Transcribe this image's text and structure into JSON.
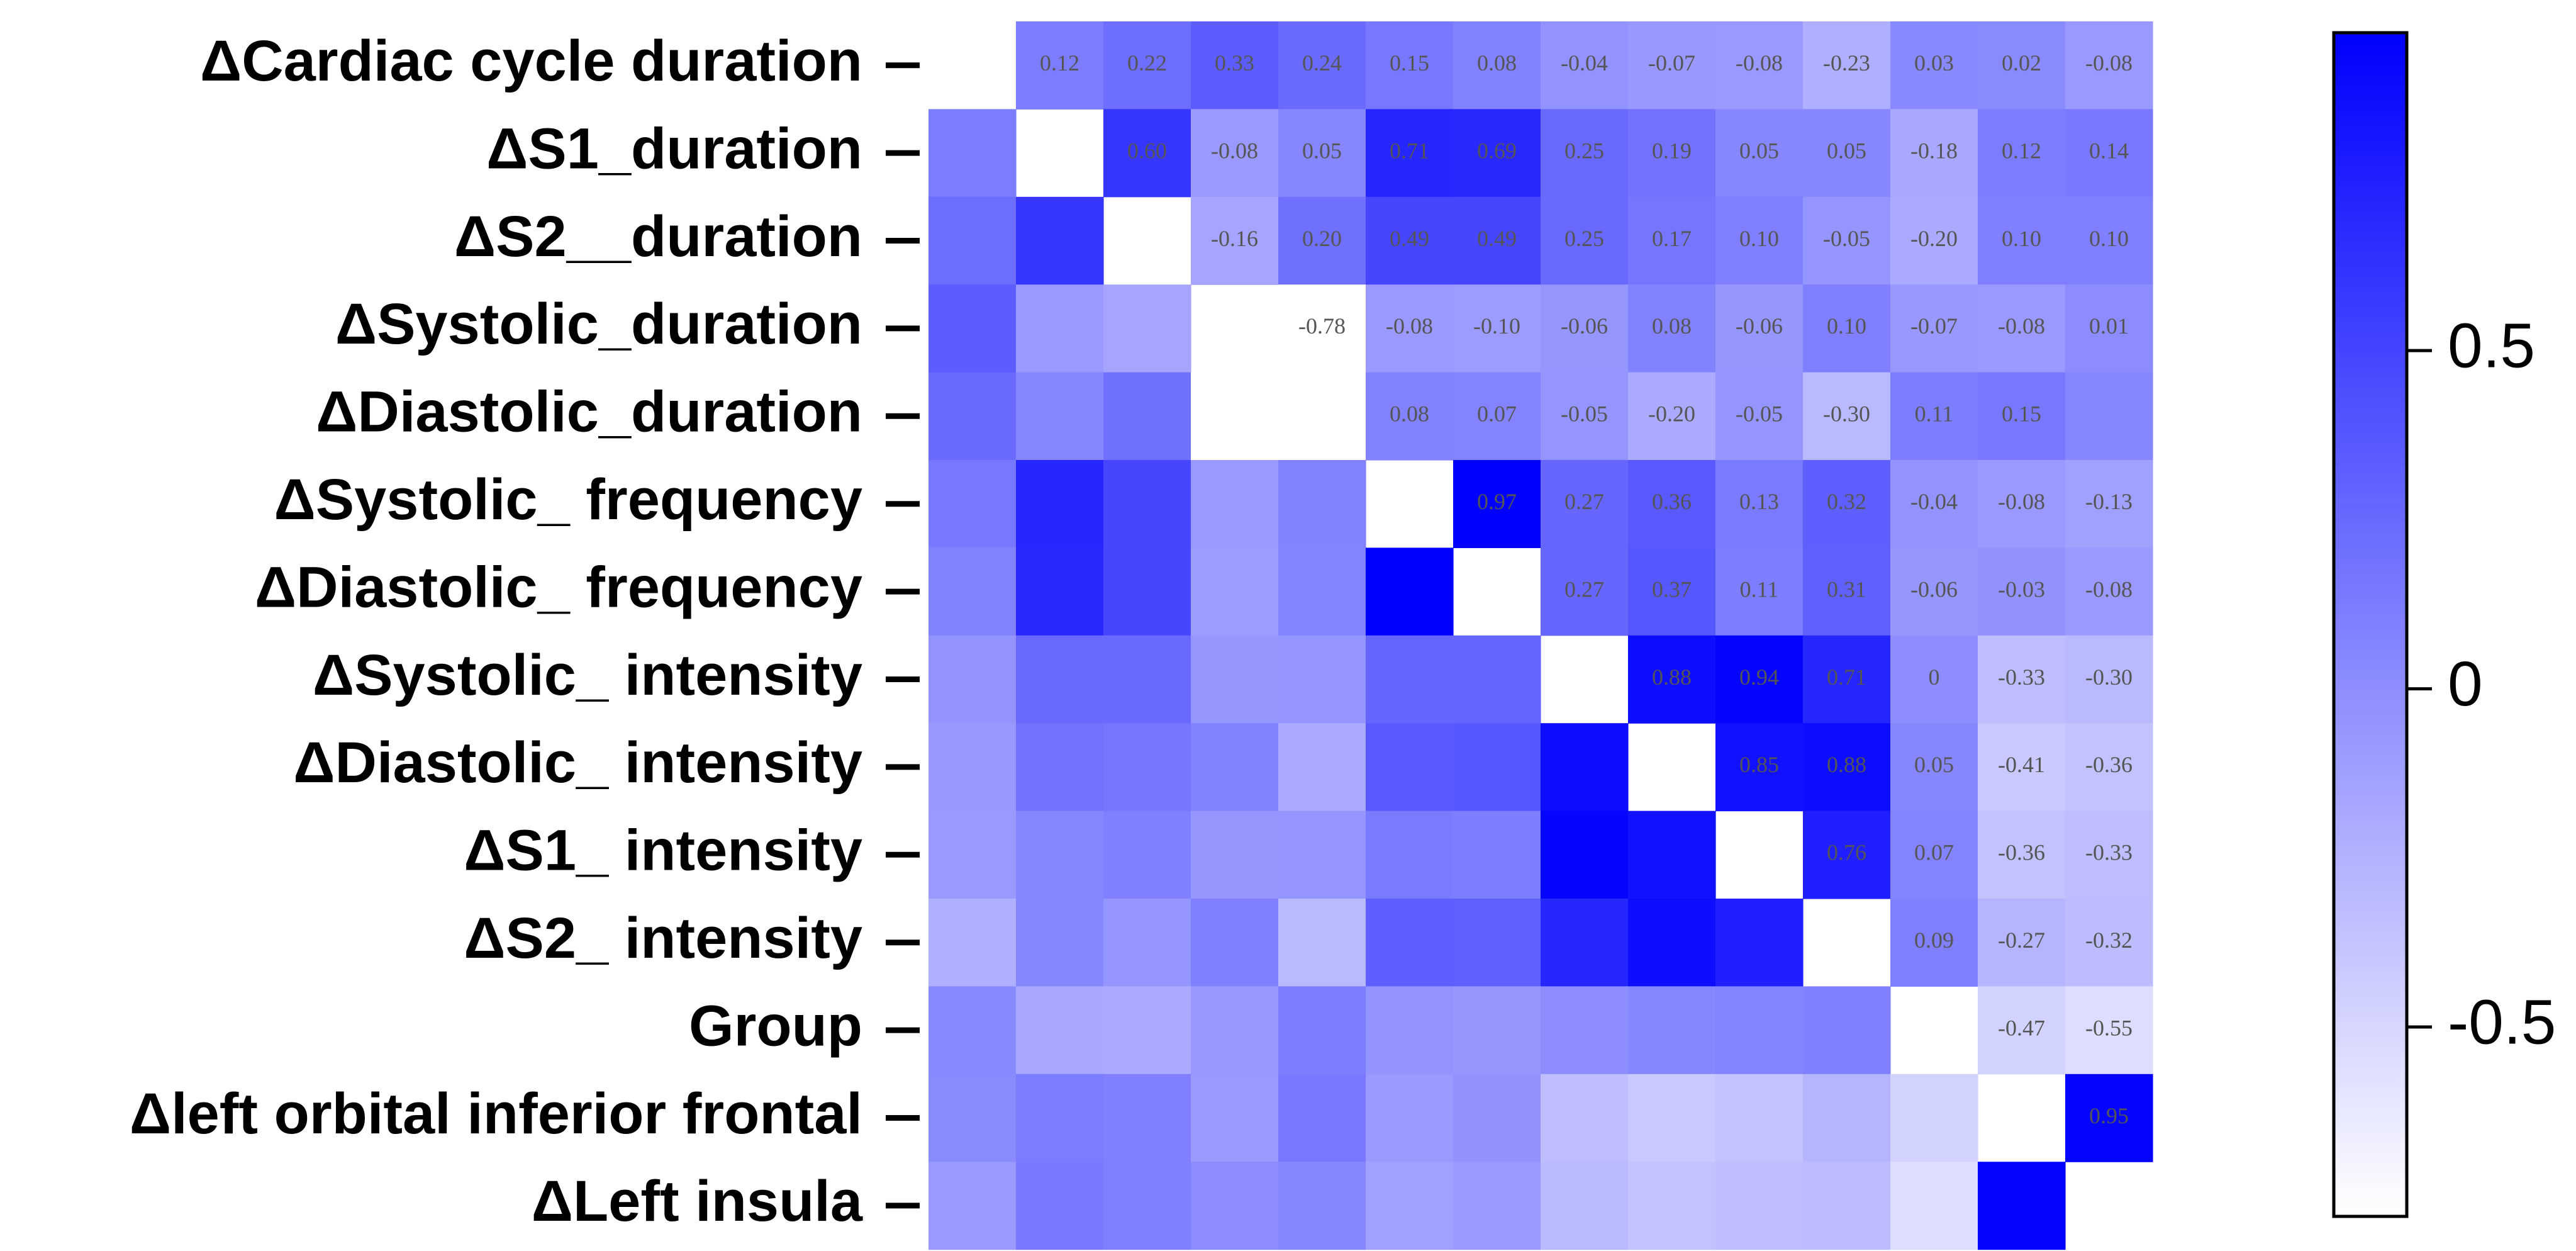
{
  "chart_data": {
    "type": "heatmap",
    "row_labels": [
      "ΔCardiac cycle duration",
      "ΔS1_duration",
      "ΔS2__duration",
      "ΔSystolic_duration",
      "ΔDiastolic_duration",
      "ΔSystolic_ frequency",
      "ΔDiastolic_ frequency",
      "ΔSystolic_ intensity",
      "ΔDiastolic_ intensity",
      "ΔS1_ intensity",
      "ΔS2_ intensity",
      "Group",
      "Δleft orbital inferior frontal",
      "ΔLeft insula"
    ],
    "values": [
      [
        0.12,
        0.22,
        0.33,
        0.24,
        0.15,
        0.08,
        -0.04,
        -0.07,
        -0.08,
        -0.23,
        0.03,
        0.02,
        -0.08
      ],
      [
        0.6,
        -0.08,
        0.05,
        0.71,
        0.69,
        0.25,
        0.19,
        0.05,
        0.05,
        -0.18,
        0.12,
        0.14
      ],
      [
        -0.16,
        0.2,
        0.49,
        0.49,
        0.25,
        0.17,
        0.1,
        -0.05,
        -0.2,
        0.1,
        0.1
      ],
      [
        -0.78,
        -0.08,
        -0.1,
        -0.06,
        0.08,
        -0.06,
        0.1,
        -0.07,
        -0.08,
        0.01
      ],
      [
        0.08,
        0.07,
        -0.05,
        -0.2,
        -0.05,
        -0.3,
        0.11,
        0.15,
        0.05
      ],
      [
        0.97,
        0.27,
        0.36,
        0.13,
        0.32,
        -0.04,
        -0.08,
        -0.13
      ],
      [
        0.27,
        0.37,
        0.11,
        0.31,
        -0.06,
        -0.03,
        -0.08
      ],
      [
        0.88,
        0.94,
        0.71,
        0,
        -0.33,
        -0.3
      ],
      [
        0.85,
        0.88,
        0.05,
        -0.41,
        -0.36
      ],
      [
        0.76,
        0.07,
        -0.36,
        -0.33
      ],
      [
        0.09,
        -0.27,
        -0.32
      ],
      [
        -0.47,
        -0.55
      ],
      [
        0.95
      ],
      []
    ],
    "value_labels": [
      [
        "0.12",
        "0.22",
        "0.33",
        "0.24",
        "0.15",
        "0.08",
        "-0.04",
        "-0.07",
        "-0.08",
        "-0.23",
        "0.03",
        "0.02",
        "-0.08"
      ],
      [
        "0.60",
        "-0.08",
        "0.05",
        "0.71",
        "0.69",
        "0.25",
        "0.19",
        "0.05",
        "0.05",
        "-0.18",
        "0.12",
        "0.14"
      ],
      [
        "-0.16",
        "0.20",
        "0.49",
        "0.49",
        "0.25",
        "0.17",
        "0.10",
        "-0.05",
        "-0.20",
        "0.10",
        "0.10"
      ],
      [
        "-0.78",
        "-0.08",
        "-0.10",
        "-0.06",
        "0.08",
        "-0.06",
        "0.10",
        "-0.07",
        "-0.08",
        "0.01"
      ],
      [
        "0.08",
        "0.07",
        "-0.05",
        "-0.20",
        "-0.05",
        "-0.30",
        "0.11",
        "0.15",
        null
      ],
      [
        "0.97",
        "0.27",
        "0.36",
        "0.13",
        "0.32",
        "-0.04",
        "-0.08",
        "-0.13"
      ],
      [
        "0.27",
        "0.37",
        "0.11",
        "0.31",
        "-0.06",
        "-0.03",
        "-0.08"
      ],
      [
        "0.88",
        "0.94",
        "0.71",
        "0",
        "-0.33",
        "-0.30"
      ],
      [
        "0.85",
        "0.88",
        "0.05",
        "-0.41",
        "-0.36"
      ],
      [
        "0.76",
        "0.07",
        "-0.36",
        "-0.33"
      ],
      [
        "0.09",
        "-0.27",
        "-0.32"
      ],
      [
        "-0.47",
        "-0.55"
      ],
      [
        "0.95"
      ],
      []
    ],
    "clim": [
      -0.78,
      0.97
    ],
    "colors": [
      "#ffffff",
      "#0000ff"
    ],
    "colorbar_ticks": [
      0.5,
      0,
      -0.5
    ]
  }
}
